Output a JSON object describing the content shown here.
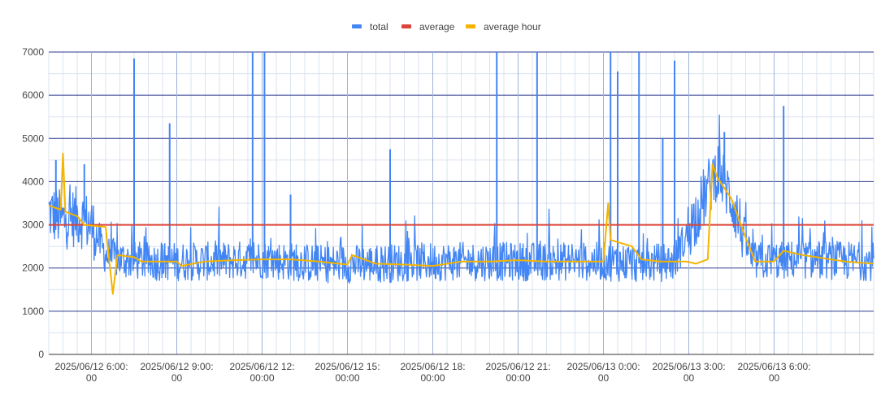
{
  "chart_data": {
    "type": "line",
    "title": "",
    "xlabel": "",
    "ylabel": "",
    "ylim": [
      0,
      7000
    ],
    "xlim": [
      "2025/06/12 04:30",
      "2025/06/13 09:30"
    ],
    "y_ticks": [
      0,
      1000,
      2000,
      3000,
      4000,
      5000,
      6000,
      7000
    ],
    "x_ticks": [
      {
        "t": "2025/06/12 06:00",
        "line1": "2025/06/12 6:00:",
        "line2": "00"
      },
      {
        "t": "2025/06/12 09:00",
        "line1": "2025/06/12 9:00:",
        "line2": "00"
      },
      {
        "t": "2025/06/12 12:00",
        "line1": "2025/06/12 12:",
        "line2": "00:00"
      },
      {
        "t": "2025/06/12 15:00",
        "line1": "2025/06/12 15:",
        "line2": "00:00"
      },
      {
        "t": "2025/06/12 18:00",
        "line1": "2025/06/12 18:",
        "line2": "00:00"
      },
      {
        "t": "2025/06/12 21:00",
        "line1": "2025/06/12 21:",
        "line2": "00:00"
      },
      {
        "t": "2025/06/13 00:00",
        "line1": "2025/06/13 0:00:",
        "line2": "00"
      },
      {
        "t": "2025/06/13 03:00",
        "line1": "2025/06/13 3:00:",
        "line2": "00"
      },
      {
        "t": "2025/06/13 06:00",
        "line1": "2025/06/13 6:00:",
        "line2": "00"
      }
    ],
    "grid": true,
    "legend_position": "top-center",
    "series": [
      {
        "name": "total",
        "color": "#4285f4",
        "baseline_level": 2100,
        "points": [
          [
            "2025/06/12 04:30",
            3300
          ],
          [
            "2025/06/12 05:00",
            3100
          ],
          [
            "2025/06/12 05:30",
            3200
          ],
          [
            "2025/06/12 06:00",
            3000
          ],
          [
            "2025/06/12 06:30",
            2300
          ],
          [
            "2025/06/12 07:00",
            2200
          ],
          [
            "2025/06/12 08:00",
            2150
          ],
          [
            "2025/06/12 09:00",
            2150
          ],
          [
            "2025/06/12 10:00",
            2150
          ],
          [
            "2025/06/12 12:00",
            2200
          ],
          [
            "2025/06/12 14:00",
            2100
          ],
          [
            "2025/06/12 16:00",
            2100
          ],
          [
            "2025/06/12 18:00",
            2150
          ],
          [
            "2025/06/12 20:00",
            2150
          ],
          [
            "2025/06/12 22:00",
            2150
          ],
          [
            "2025/06/13 00:00",
            2150
          ],
          [
            "2025/06/13 01:30",
            2100
          ],
          [
            "2025/06/13 02:30",
            2150
          ],
          [
            "2025/06/13 04:00",
            4300
          ],
          [
            "2025/06/13 04:30",
            3600
          ],
          [
            "2025/06/13 05:15",
            2150
          ],
          [
            "2025/06/13 07:00",
            2200
          ],
          [
            "2025/06/13 09:30",
            2150
          ]
        ],
        "spikes": [
          [
            "2025/06/12 04:45",
            4500
          ],
          [
            "2025/06/12 05:45",
            4400
          ],
          [
            "2025/06/12 07:30",
            6850
          ],
          [
            "2025/06/12 08:45",
            5350
          ],
          [
            "2025/06/12 11:40",
            7000
          ],
          [
            "2025/06/12 12:05",
            7000
          ],
          [
            "2025/06/12 13:00",
            3700
          ],
          [
            "2025/06/12 16:30",
            4750
          ],
          [
            "2025/06/12 20:15",
            7000
          ],
          [
            "2025/06/12 21:40",
            7000
          ],
          [
            "2025/06/13 00:15",
            7000
          ],
          [
            "2025/06/13 00:30",
            6550
          ],
          [
            "2025/06/13 01:15",
            7000
          ],
          [
            "2025/06/13 02:05",
            5000
          ],
          [
            "2025/06/13 02:30",
            6800
          ],
          [
            "2025/06/13 04:15",
            5150
          ],
          [
            "2025/06/13 06:20",
            5750
          ]
        ]
      },
      {
        "name": "average",
        "color": "#db4437",
        "points": [
          [
            "2025/06/12 04:30",
            3000
          ],
          [
            "2025/06/13 09:30",
            3000
          ]
        ]
      },
      {
        "name": "average hour",
        "color": "#f4b400",
        "points": [
          [
            "2025/06/12 04:30",
            3450
          ],
          [
            "2025/06/12 04:55",
            3350
          ],
          [
            "2025/06/12 05:00",
            4650
          ],
          [
            "2025/06/12 05:05",
            3300
          ],
          [
            "2025/06/12 05:30",
            3200
          ],
          [
            "2025/06/12 05:45",
            3000
          ],
          [
            "2025/06/12 06:30",
            2950
          ],
          [
            "2025/06/12 06:45",
            1400
          ],
          [
            "2025/06/12 06:55",
            2300
          ],
          [
            "2025/06/12 07:30",
            2250
          ],
          [
            "2025/06/12 07:45",
            2150
          ],
          [
            "2025/06/12 09:00",
            2150
          ],
          [
            "2025/06/12 09:10",
            2050
          ],
          [
            "2025/06/12 10:00",
            2150
          ],
          [
            "2025/06/12 11:00",
            2180
          ],
          [
            "2025/06/12 12:00",
            2200
          ],
          [
            "2025/06/12 13:00",
            2200
          ],
          [
            "2025/06/12 14:00",
            2150
          ],
          [
            "2025/06/12 15:00",
            2080
          ],
          [
            "2025/06/12 15:10",
            2300
          ],
          [
            "2025/06/12 16:00",
            2100
          ],
          [
            "2025/06/12 17:00",
            2080
          ],
          [
            "2025/06/12 18:00",
            2050
          ],
          [
            "2025/06/12 19:00",
            2150
          ],
          [
            "2025/06/12 20:00",
            2150
          ],
          [
            "2025/06/12 21:00",
            2180
          ],
          [
            "2025/06/12 22:00",
            2150
          ],
          [
            "2025/06/12 23:00",
            2150
          ],
          [
            "2025/06/12 23:30",
            2150
          ],
          [
            "2025/06/13 00:00",
            2150
          ],
          [
            "2025/06/13 00:10",
            3500
          ],
          [
            "2025/06/13 00:15",
            2650
          ],
          [
            "2025/06/13 01:00",
            2500
          ],
          [
            "2025/06/13 01:20",
            2200
          ],
          [
            "2025/06/13 02:00",
            2150
          ],
          [
            "2025/06/13 02:55",
            2150
          ],
          [
            "2025/06/13 03:15",
            2100
          ],
          [
            "2025/06/13 03:40",
            2200
          ],
          [
            "2025/06/13 03:50",
            4400
          ],
          [
            "2025/06/13 04:00",
            4100
          ],
          [
            "2025/06/13 04:30",
            3600
          ],
          [
            "2025/06/13 05:00",
            2700
          ],
          [
            "2025/06/13 05:20",
            2150
          ],
          [
            "2025/06/13 06:00",
            2150
          ],
          [
            "2025/06/13 06:20",
            2400
          ],
          [
            "2025/06/13 07:00",
            2300
          ],
          [
            "2025/06/13 08:00",
            2200
          ],
          [
            "2025/06/13 08:30",
            2150
          ],
          [
            "2025/06/13 09:30",
            2100
          ]
        ]
      }
    ]
  }
}
